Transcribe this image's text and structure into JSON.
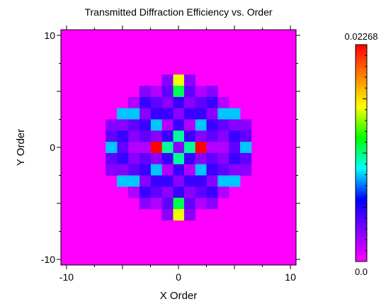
{
  "chart_data": {
    "type": "heatmap",
    "title": "Transmitted Diffraction Efficiency vs. Order",
    "xlabel": "X Order",
    "ylabel": "Y Order",
    "xlim": [
      -10.5,
      10.5
    ],
    "ylim": [
      -10.5,
      10.5
    ],
    "x_ticks": [
      -10,
      0,
      10
    ],
    "y_ticks": [
      -10,
      0,
      10
    ],
    "x_tick_labels": [
      "-10",
      "0",
      "10"
    ],
    "y_tick_labels": [
      "-10",
      "0",
      "10"
    ],
    "colorbar": {
      "min": 0.0,
      "max": 0.02268,
      "min_label": "0.0",
      "max_label": "0.02268",
      "colors": [
        "#ff00ff",
        "#8000ff",
        "#0000ff",
        "#00ffff",
        "#00ff00",
        "#ffff00",
        "#ff8000",
        "#ff0000"
      ]
    },
    "background_value": 0.0,
    "grid": false,
    "cells": [
      {
        "x": 0,
        "y": 6,
        "v": 0.016
      },
      {
        "x": 0,
        "y": 5,
        "v": 0.012
      },
      {
        "x": 0,
        "y": 4,
        "v": 0.005
      },
      {
        "x": 0,
        "y": 3,
        "v": 0.003
      },
      {
        "x": 0,
        "y": 2,
        "v": 0.005
      },
      {
        "x": 0,
        "y": 1,
        "v": 0.011
      },
      {
        "x": 0,
        "y": 0,
        "v": 0.003
      },
      {
        "x": 0,
        "y": -1,
        "v": 0.011
      },
      {
        "x": 0,
        "y": -2,
        "v": 0.005
      },
      {
        "x": 0,
        "y": -3,
        "v": 0.003
      },
      {
        "x": 0,
        "y": -4,
        "v": 0.005
      },
      {
        "x": 0,
        "y": -5,
        "v": 0.012
      },
      {
        "x": 0,
        "y": -6,
        "v": 0.016
      },
      {
        "x": -1,
        "y": 6,
        "v": 0.003
      },
      {
        "x": 1,
        "y": 6,
        "v": 0.003
      },
      {
        "x": -1,
        "y": 5,
        "v": 0.004
      },
      {
        "x": 1,
        "y": 5,
        "v": 0.004
      },
      {
        "x": -1,
        "y": 4,
        "v": 0.003
      },
      {
        "x": 1,
        "y": 4,
        "v": 0.003
      },
      {
        "x": -1,
        "y": 3,
        "v": 0.005
      },
      {
        "x": 1,
        "y": 3,
        "v": 0.005
      },
      {
        "x": -1,
        "y": 2,
        "v": 0.002
      },
      {
        "x": 1,
        "y": 2,
        "v": 0.002
      },
      {
        "x": -1,
        "y": 1,
        "v": 0.005
      },
      {
        "x": 1,
        "y": 1,
        "v": 0.005
      },
      {
        "x": -1,
        "y": 0,
        "v": 0.011
      },
      {
        "x": 1,
        "y": 0,
        "v": 0.011
      },
      {
        "x": -1,
        "y": -1,
        "v": 0.005
      },
      {
        "x": 1,
        "y": -1,
        "v": 0.005
      },
      {
        "x": -1,
        "y": -2,
        "v": 0.002
      },
      {
        "x": 1,
        "y": -2,
        "v": 0.002
      },
      {
        "x": -1,
        "y": -3,
        "v": 0.005
      },
      {
        "x": 1,
        "y": -3,
        "v": 0.005
      },
      {
        "x": -1,
        "y": -4,
        "v": 0.003
      },
      {
        "x": 1,
        "y": -4,
        "v": 0.003
      },
      {
        "x": -1,
        "y": -5,
        "v": 0.004
      },
      {
        "x": 1,
        "y": -5,
        "v": 0.004
      },
      {
        "x": -1,
        "y": -6,
        "v": 0.003
      },
      {
        "x": 1,
        "y": -6,
        "v": 0.003
      },
      {
        "x": -2,
        "y": 5,
        "v": 0.002
      },
      {
        "x": 2,
        "y": 5,
        "v": 0.002
      },
      {
        "x": -2,
        "y": 4,
        "v": 0.004
      },
      {
        "x": 2,
        "y": 4,
        "v": 0.004
      },
      {
        "x": -2,
        "y": 3,
        "v": 0.005
      },
      {
        "x": 2,
        "y": 3,
        "v": 0.005
      },
      {
        "x": -2,
        "y": 2,
        "v": 0.009
      },
      {
        "x": 2,
        "y": 2,
        "v": 0.009
      },
      {
        "x": -2,
        "y": 1,
        "v": 0.003
      },
      {
        "x": 2,
        "y": 1,
        "v": 0.003
      },
      {
        "x": -2,
        "y": 0,
        "v": 0.0226
      },
      {
        "x": 2,
        "y": 0,
        "v": 0.0226
      },
      {
        "x": -2,
        "y": -1,
        "v": 0.003
      },
      {
        "x": 2,
        "y": -1,
        "v": 0.003
      },
      {
        "x": -2,
        "y": -2,
        "v": 0.009
      },
      {
        "x": 2,
        "y": -2,
        "v": 0.009
      },
      {
        "x": -2,
        "y": -3,
        "v": 0.005
      },
      {
        "x": 2,
        "y": -3,
        "v": 0.005
      },
      {
        "x": -2,
        "y": -4,
        "v": 0.004
      },
      {
        "x": 2,
        "y": -4,
        "v": 0.004
      },
      {
        "x": -2,
        "y": -5,
        "v": 0.002
      },
      {
        "x": 2,
        "y": -5,
        "v": 0.002
      },
      {
        "x": -3,
        "y": 5,
        "v": 0.003
      },
      {
        "x": 3,
        "y": 5,
        "v": 0.003
      },
      {
        "x": -3,
        "y": 4,
        "v": 0.005
      },
      {
        "x": 3,
        "y": 4,
        "v": 0.005
      },
      {
        "x": -3,
        "y": 3,
        "v": 0.003
      },
      {
        "x": 3,
        "y": 3,
        "v": 0.003
      },
      {
        "x": -3,
        "y": 2,
        "v": 0.005
      },
      {
        "x": 3,
        "y": 2,
        "v": 0.005
      },
      {
        "x": -3,
        "y": 1,
        "v": 0.004
      },
      {
        "x": 3,
        "y": 1,
        "v": 0.004
      },
      {
        "x": -3,
        "y": 0,
        "v": 0.002
      },
      {
        "x": 3,
        "y": 0,
        "v": 0.002
      },
      {
        "x": -3,
        "y": -1,
        "v": 0.004
      },
      {
        "x": 3,
        "y": -1,
        "v": 0.004
      },
      {
        "x": -3,
        "y": -2,
        "v": 0.005
      },
      {
        "x": 3,
        "y": -2,
        "v": 0.005
      },
      {
        "x": -3,
        "y": -3,
        "v": 0.003
      },
      {
        "x": 3,
        "y": -3,
        "v": 0.003
      },
      {
        "x": -3,
        "y": -4,
        "v": 0.005
      },
      {
        "x": 3,
        "y": -4,
        "v": 0.005
      },
      {
        "x": -3,
        "y": -5,
        "v": 0.003
      },
      {
        "x": 3,
        "y": -5,
        "v": 0.003
      },
      {
        "x": -4,
        "y": 4,
        "v": 0.002
      },
      {
        "x": 4,
        "y": 4,
        "v": 0.002
      },
      {
        "x": -4,
        "y": 3,
        "v": 0.009
      },
      {
        "x": 4,
        "y": 3,
        "v": 0.009
      },
      {
        "x": -4,
        "y": 2,
        "v": 0.004
      },
      {
        "x": 4,
        "y": 2,
        "v": 0.004
      },
      {
        "x": -4,
        "y": 1,
        "v": 0.003
      },
      {
        "x": 4,
        "y": 1,
        "v": 0.003
      },
      {
        "x": -4,
        "y": 0,
        "v": 0.002
      },
      {
        "x": 4,
        "y": 0,
        "v": 0.002
      },
      {
        "x": -4,
        "y": -1,
        "v": 0.003
      },
      {
        "x": 4,
        "y": -1,
        "v": 0.003
      },
      {
        "x": -4,
        "y": -2,
        "v": 0.004
      },
      {
        "x": 4,
        "y": -2,
        "v": 0.004
      },
      {
        "x": -4,
        "y": -3,
        "v": 0.009
      },
      {
        "x": 4,
        "y": -3,
        "v": 0.009
      },
      {
        "x": -4,
        "y": -4,
        "v": 0.002
      },
      {
        "x": 4,
        "y": -4,
        "v": 0.002
      },
      {
        "x": -5,
        "y": 3,
        "v": 0.009
      },
      {
        "x": 5,
        "y": 3,
        "v": 0.009
      },
      {
        "x": -5,
        "y": 2,
        "v": 0.003
      },
      {
        "x": 5,
        "y": 2,
        "v": 0.003
      },
      {
        "x": -5,
        "y": 1,
        "v": 0.005
      },
      {
        "x": 5,
        "y": 1,
        "v": 0.005
      },
      {
        "x": -5,
        "y": 0,
        "v": 0.004
      },
      {
        "x": 5,
        "y": 0,
        "v": 0.004
      },
      {
        "x": -5,
        "y": -1,
        "v": 0.005
      },
      {
        "x": 5,
        "y": -1,
        "v": 0.005
      },
      {
        "x": -5,
        "y": -2,
        "v": 0.003
      },
      {
        "x": 5,
        "y": -2,
        "v": 0.003
      },
      {
        "x": -5,
        "y": -3,
        "v": 0.009
      },
      {
        "x": 5,
        "y": -3,
        "v": 0.009
      },
      {
        "x": -6,
        "y": 2,
        "v": 0.003
      },
      {
        "x": 6,
        "y": 2,
        "v": 0.003
      },
      {
        "x": -6,
        "y": 1,
        "v": 0.004
      },
      {
        "x": 6,
        "y": 1,
        "v": 0.004
      },
      {
        "x": -6,
        "y": 0,
        "v": 0.009
      },
      {
        "x": 6,
        "y": 0,
        "v": 0.009
      },
      {
        "x": -6,
        "y": -1,
        "v": 0.004
      },
      {
        "x": 6,
        "y": -1,
        "v": 0.004
      },
      {
        "x": -6,
        "y": -2,
        "v": 0.003
      },
      {
        "x": 6,
        "y": -2,
        "v": 0.003
      }
    ]
  }
}
